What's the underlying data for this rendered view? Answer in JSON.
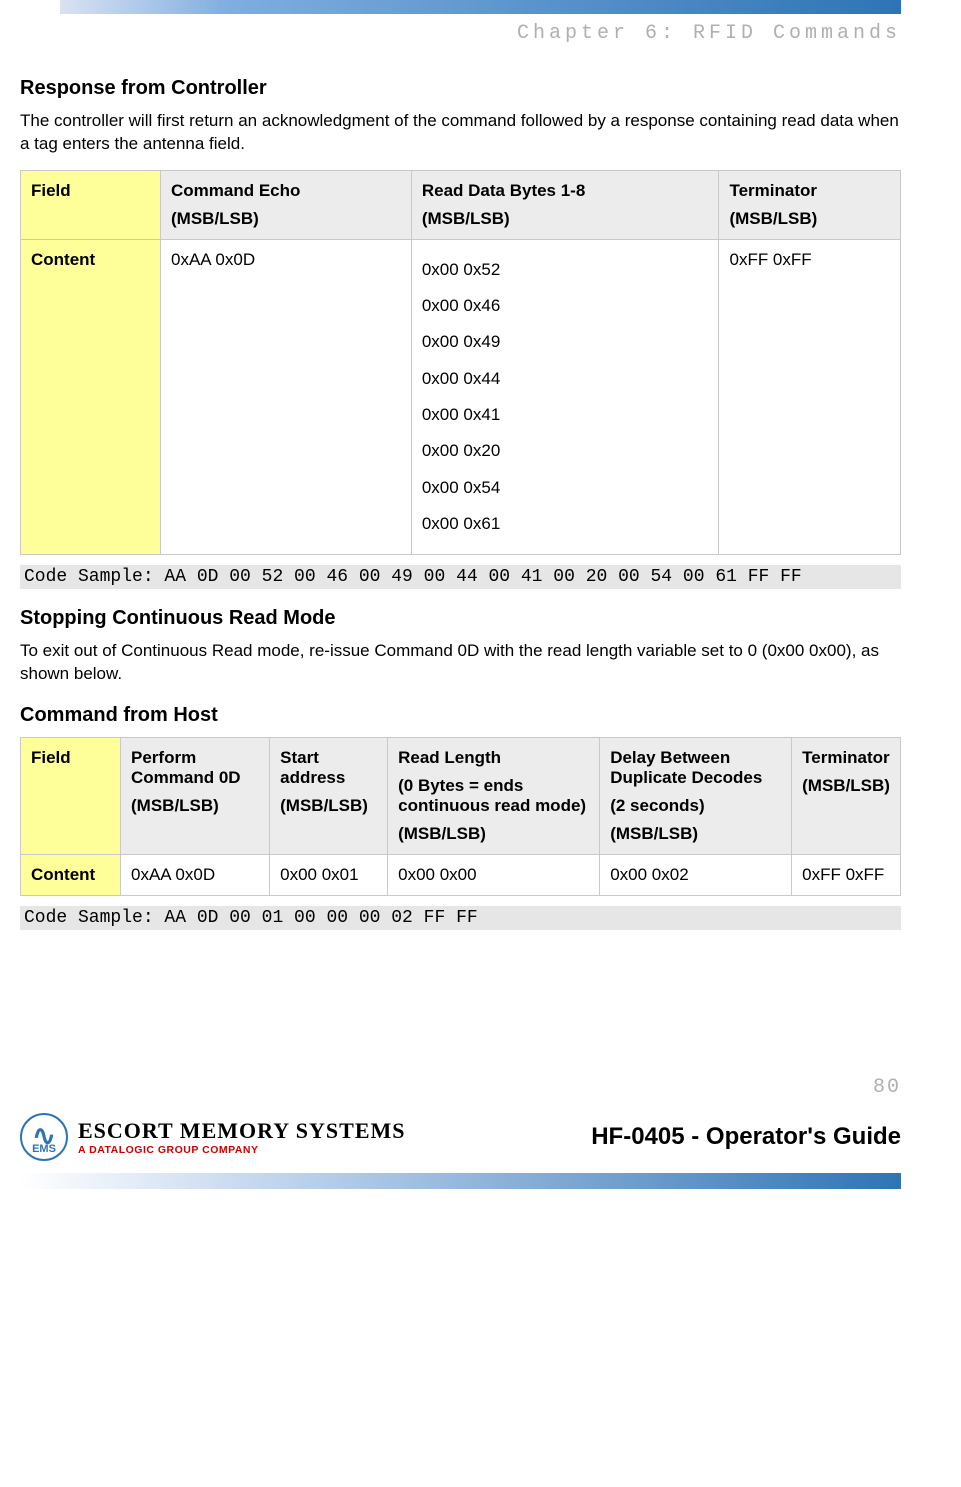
{
  "chapter_header": "Chapter 6: RFID Commands",
  "section1": {
    "title": "Response from Controller",
    "body": "The controller will first return an acknowledgment of the command followed by a response containing read data when a tag enters the antenna field."
  },
  "table1": {
    "row_labels": {
      "field": "Field",
      "content": "Content"
    },
    "cols": [
      {
        "h1": "Command Echo",
        "h2": "(MSB/LSB)",
        "v": "0xAA 0x0D"
      },
      {
        "h1": "Read Data Bytes 1-8",
        "h2": "(MSB/LSB)",
        "lines": [
          "0x00 0x52",
          "0x00 0x46",
          "0x00 0x49",
          "0x00 0x44",
          "0x00 0x41",
          "0x00 0x20",
          "0x00 0x54",
          "0x00 0x61"
        ]
      },
      {
        "h1": "Terminator",
        "h2": "(MSB/LSB)",
        "v": "0xFF 0xFF"
      }
    ]
  },
  "code1": "Code Sample: AA 0D 00 52 00 46 00 49 00 44 00 41 00 20 00 54 00 61 FF FF",
  "section2": {
    "title": "Stopping Continuous Read Mode",
    "body": "To exit out of Continuous Read mode, re-issue Command 0D with the read length variable set to 0 (0x00 0x00), as shown below."
  },
  "section3": {
    "title": "Command from Host"
  },
  "table2": {
    "row_labels": {
      "field": "Field",
      "content": "Content"
    },
    "cols": [
      {
        "h1": "Perform Command 0D",
        "h2": "(MSB/LSB)",
        "v": "0xAA 0x0D"
      },
      {
        "h1": "Start address",
        "h2": "(MSB/LSB)",
        "v": "0x00 0x01"
      },
      {
        "h1": "Read Length",
        "hmid": "(0 Bytes = ends continuous read mode)",
        "h2": "(MSB/LSB)",
        "v": "0x00 0x00"
      },
      {
        "h1": "Delay Between Duplicate Decodes",
        "hmid": "(2 seconds)",
        "h2": "(MSB/LSB)",
        "v": "0x00 0x02"
      },
      {
        "h1": "Terminator",
        "h2": "(MSB/LSB)",
        "v": "0xFF 0xFF"
      }
    ]
  },
  "code2": "Code Sample: AA 0D 00 01 00 00 00 02 FF FF",
  "page_number": "80",
  "footer": {
    "logo_line1": "ESCORT MEMORY SYSTEMS",
    "logo_line2": "A DATALOGIC GROUP COMPANY",
    "logo_badge_text": "EMS",
    "guide_title": "HF-0405 - Operator's Guide"
  },
  "colors": {
    "firstcol_bg": "#ffff99",
    "hdr_bg": "#ececec",
    "border": "#c9c9c9",
    "code_bg": "#e6e6e6",
    "bar_dark": "#2e74b5",
    "muted": "#b0b0b0",
    "brand_red": "#cc0000"
  }
}
